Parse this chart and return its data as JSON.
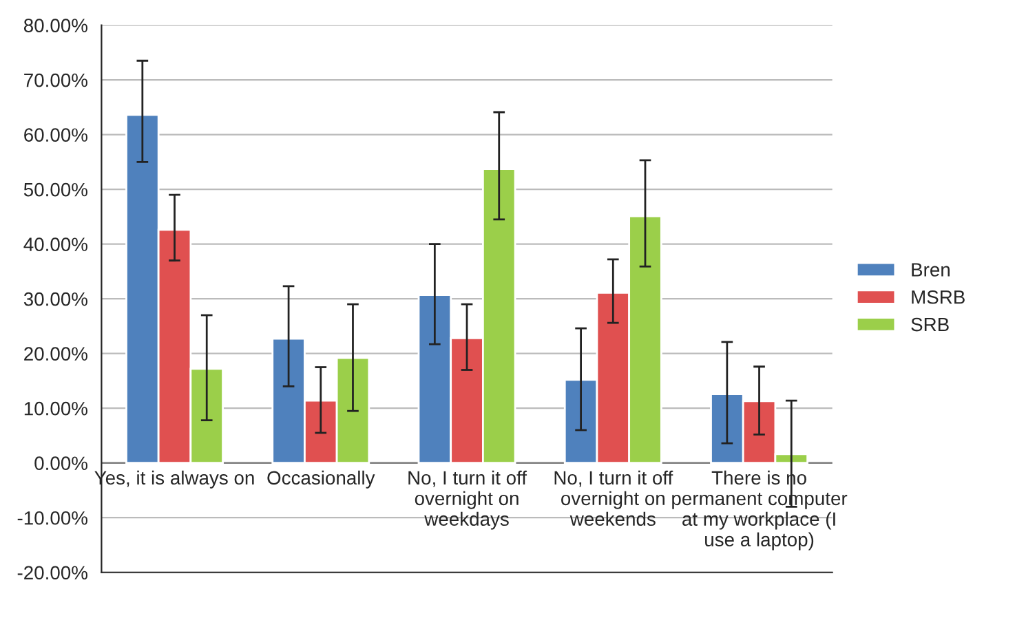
{
  "chart_data": {
    "type": "bar",
    "categories": [
      "Yes, it is always on",
      "Occasionally",
      "No, I turn it off overnight on weekdays",
      "No, I turn it off overnight on weekends",
      "There is no permanent computer at my workplace (I use a laptop)"
    ],
    "series": [
      {
        "name": "Bren",
        "color": "#4f81bd",
        "values": [
          63.6,
          22.7,
          30.7,
          15.2,
          12.6
        ],
        "errors": [
          [
            55,
            73.5
          ],
          [
            14,
            32.3
          ],
          [
            21.7,
            40
          ],
          [
            6,
            24.6
          ],
          [
            3.6,
            22.1
          ]
        ]
      },
      {
        "name": "MSRB",
        "color": "#e05050",
        "values": [
          42.6,
          11.4,
          22.8,
          31.1,
          11.3
        ],
        "errors": [
          [
            37,
            49
          ],
          [
            5.5,
            17.5
          ],
          [
            17,
            29
          ],
          [
            25.6,
            37.2
          ],
          [
            5.2,
            17.6
          ]
        ]
      },
      {
        "name": "SRB",
        "color": "#9bcf4a",
        "values": [
          17.2,
          19.2,
          53.7,
          45.1,
          1.6
        ],
        "errors": [
          [
            7.8,
            27
          ],
          [
            9.5,
            29
          ],
          [
            44.5,
            64.1
          ],
          [
            35.9,
            55.3
          ],
          [
            -8,
            11.4
          ]
        ]
      }
    ],
    "ylim": [
      -20,
      80
    ],
    "yticks": [
      {
        "value": -20,
        "label": "-20.00%"
      },
      {
        "value": -10,
        "label": "-10.00%"
      },
      {
        "value": 0,
        "label": "0.00%"
      },
      {
        "value": 10,
        "label": "10.00%"
      },
      {
        "value": 20,
        "label": "20.00%"
      },
      {
        "value": 30,
        "label": "30.00%"
      },
      {
        "value": 40,
        "label": "40.00%"
      },
      {
        "value": 50,
        "label": "50.00%"
      },
      {
        "value": 60,
        "label": "60.00%"
      },
      {
        "value": 70,
        "label": "70.00%"
      },
      {
        "value": 80,
        "label": "80.00%"
      }
    ],
    "grid": "y",
    "legend": "right"
  }
}
